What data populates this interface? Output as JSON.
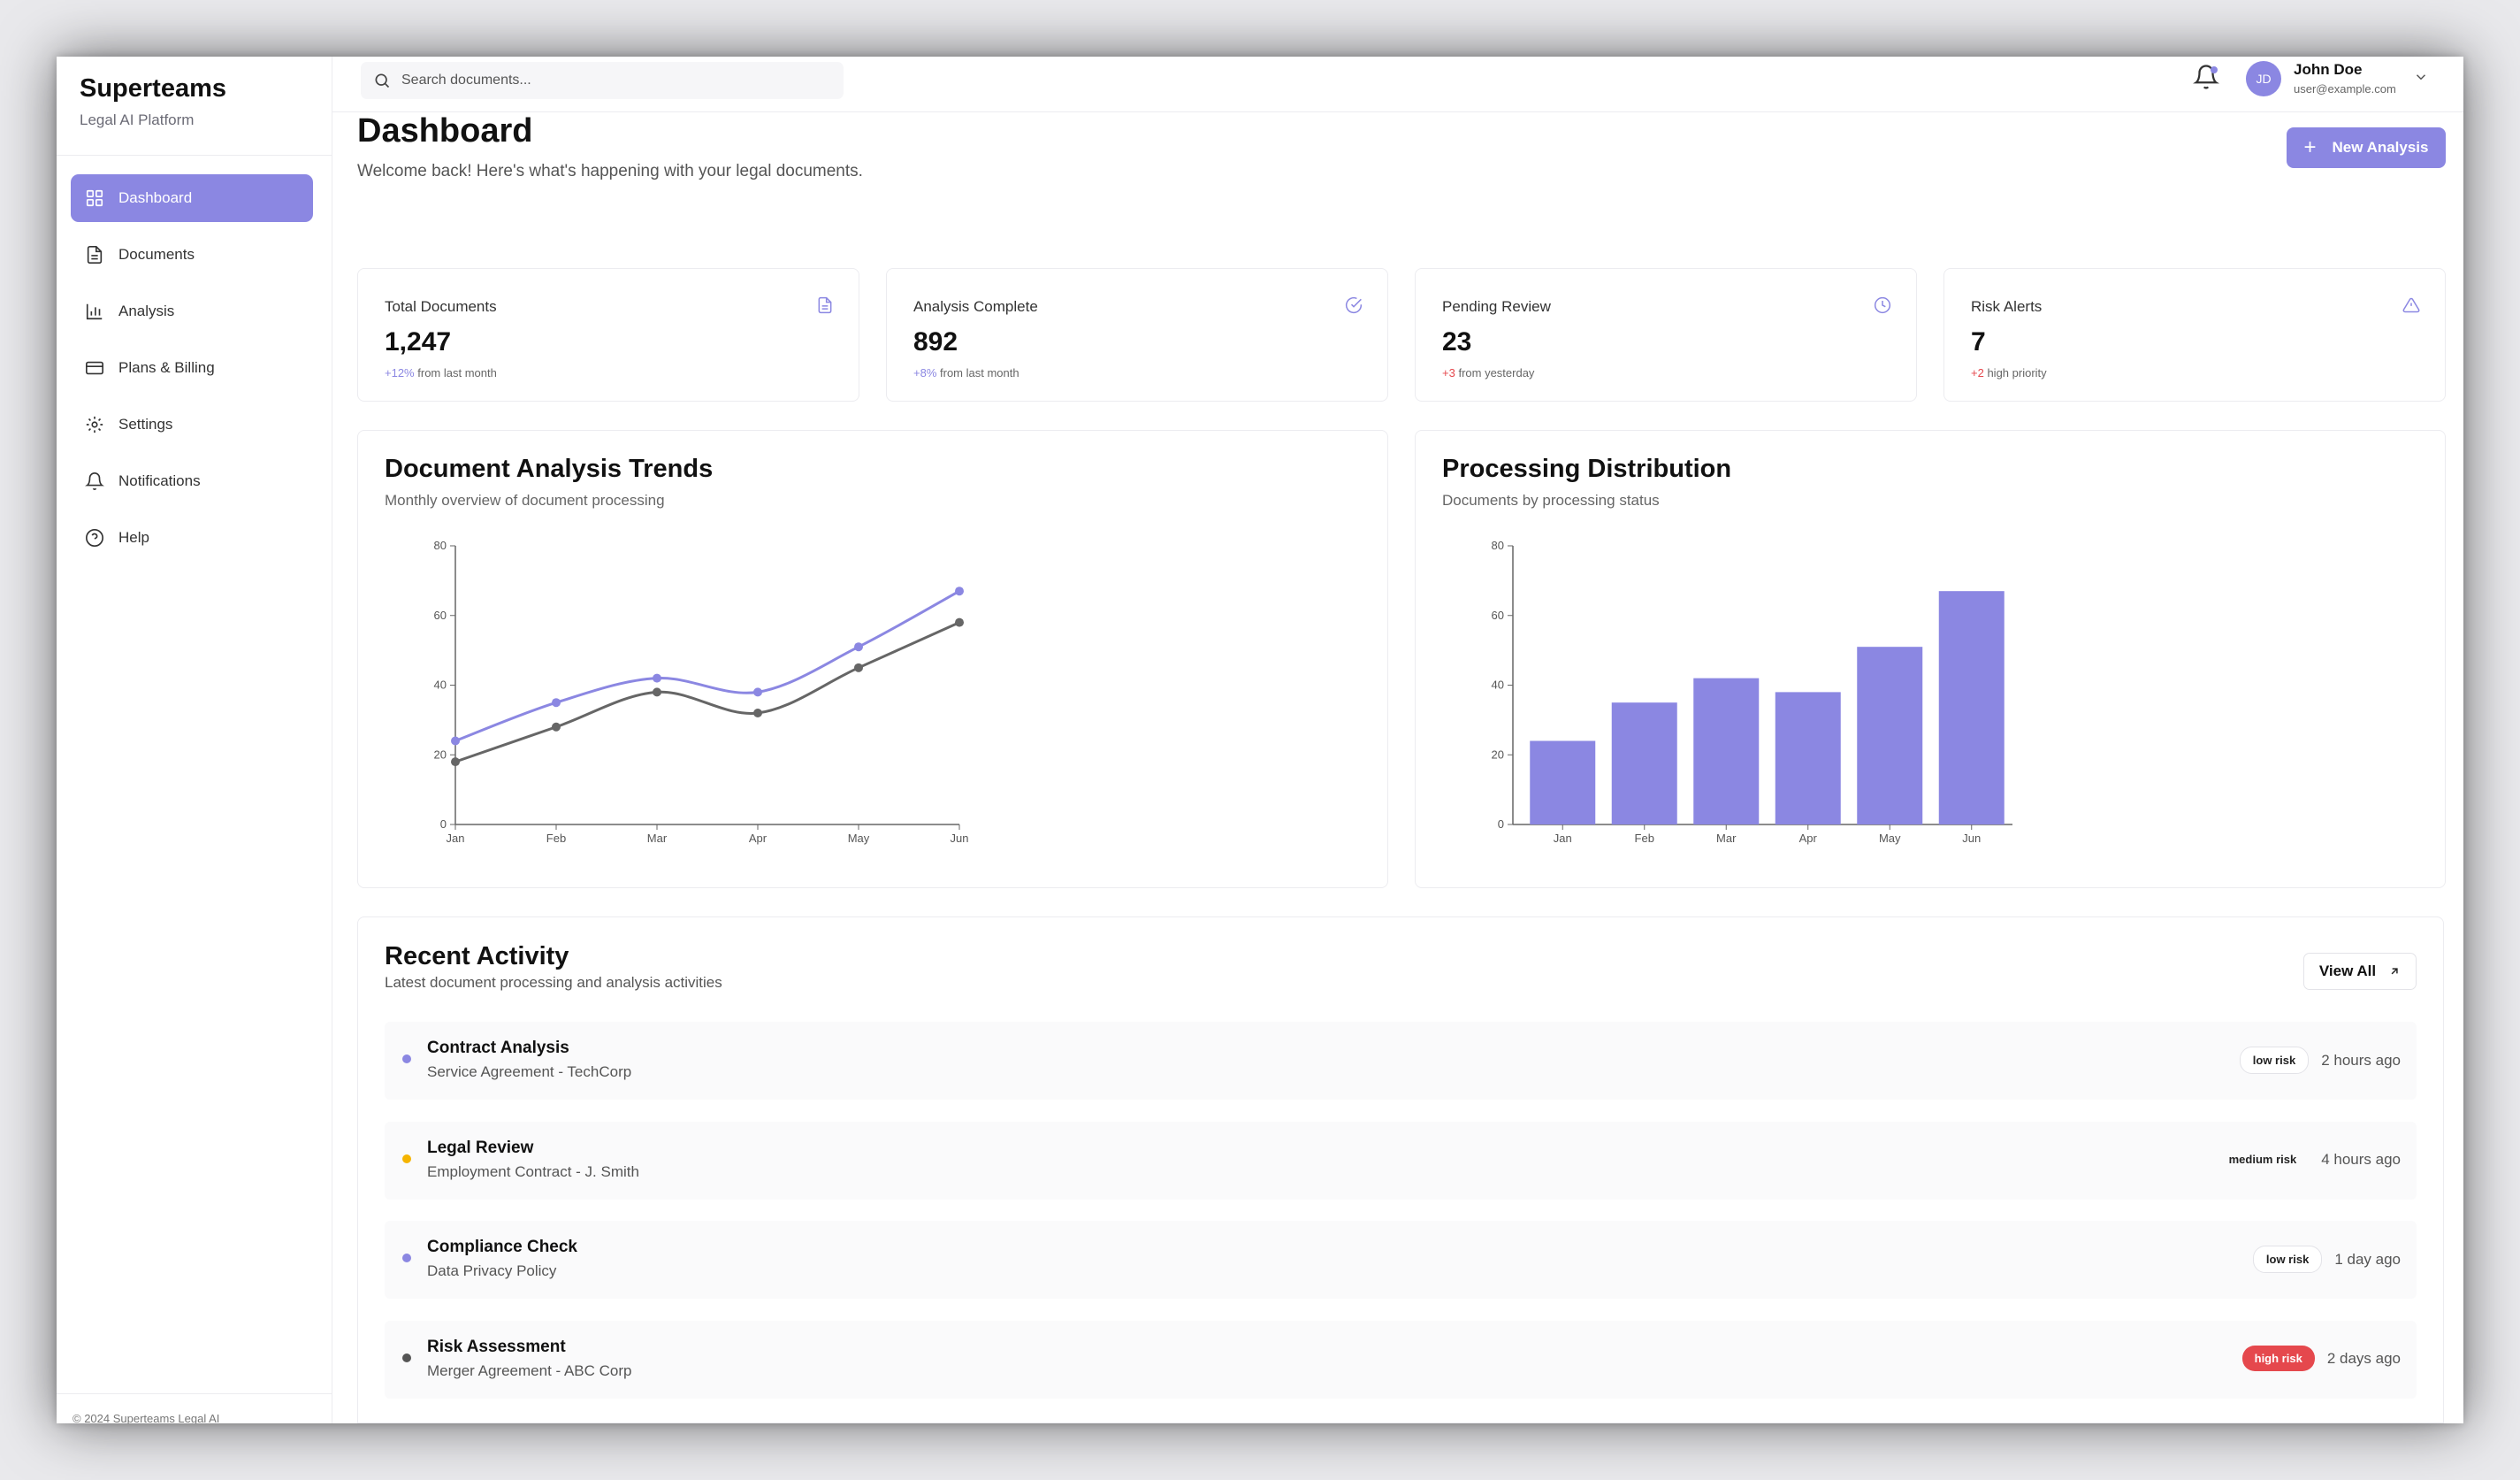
{
  "brand": {
    "title": "Superteams",
    "subtitle": "Legal AI Platform"
  },
  "nav": [
    {
      "label": "Dashboard",
      "icon": "grid-icon",
      "active": true
    },
    {
      "label": "Documents",
      "icon": "document-icon"
    },
    {
      "label": "Analysis",
      "icon": "bar-chart-icon"
    },
    {
      "label": "Plans & Billing",
      "icon": "credit-card-icon"
    },
    {
      "label": "Settings",
      "icon": "gear-icon"
    },
    {
      "label": "Notifications",
      "icon": "bell-icon"
    },
    {
      "label": "Help",
      "icon": "help-circle-icon"
    }
  ],
  "footer": "© 2024 Superteams Legal AI",
  "search": {
    "placeholder": "Search documents..."
  },
  "user": {
    "initials": "JD",
    "name": "John Doe",
    "email": "user@example.com"
  },
  "page": {
    "title": "Dashboard",
    "subtitle": "Welcome back! Here's what's happening with your legal documents.",
    "new_button": "New Analysis"
  },
  "stats": [
    {
      "label": "Total Documents",
      "value": "1,247",
      "change": "+12%",
      "change_text": "from last month",
      "change_type": "pos",
      "icon": "file-icon"
    },
    {
      "label": "Analysis Complete",
      "value": "892",
      "change": "+8%",
      "change_text": "from last month",
      "change_type": "pos",
      "icon": "check-circle-icon"
    },
    {
      "label": "Pending Review",
      "value": "23",
      "change": "+3",
      "change_text": "from yesterday",
      "change_type": "neg",
      "icon": "clock-icon"
    },
    {
      "label": "Risk Alerts",
      "value": "7",
      "change": "+2",
      "change_text": "high priority",
      "change_type": "neg",
      "icon": "alert-triangle-icon"
    }
  ],
  "charts": {
    "trends": {
      "title": "Document Analysis Trends",
      "subtitle": "Monthly overview of document processing"
    },
    "distribution": {
      "title": "Processing Distribution",
      "subtitle": "Documents by processing status"
    }
  },
  "chart_data": [
    {
      "type": "line",
      "title": "Document Analysis Trends",
      "categories": [
        "Jan",
        "Feb",
        "Mar",
        "Apr",
        "May",
        "Jun"
      ],
      "series": [
        {
          "color": "#8b87e2",
          "values": [
            24,
            35,
            42,
            38,
            51,
            67
          ]
        },
        {
          "color": "#666666",
          "values": [
            18,
            28,
            38,
            32,
            45,
            58
          ]
        }
      ],
      "ylim": [
        0,
        80
      ],
      "yticks": [
        0,
        20,
        40,
        60,
        80
      ],
      "grid": false
    },
    {
      "type": "bar",
      "title": "Processing Distribution",
      "categories": [
        "Jan",
        "Feb",
        "Mar",
        "Apr",
        "May",
        "Jun"
      ],
      "values": [
        24,
        35,
        42,
        38,
        51,
        67
      ],
      "color": "#8b87e2",
      "ylim": [
        0,
        80
      ],
      "yticks": [
        0,
        20,
        40,
        60,
        80
      ],
      "grid": false
    }
  ],
  "activity": {
    "title": "Recent Activity",
    "subtitle": "Latest document processing and analysis activities",
    "view_all": "View All",
    "items": [
      {
        "title": "Contract Analysis",
        "subtitle": "Service Agreement - TechCorp",
        "risk": "low risk",
        "risk_level": "low",
        "time": "2 hours ago",
        "dot": "#8b87e2"
      },
      {
        "title": "Legal Review",
        "subtitle": "Employment Contract - J. Smith",
        "risk": "medium risk",
        "risk_level": "medium",
        "time": "4 hours ago",
        "dot": "#f5b400"
      },
      {
        "title": "Compliance Check",
        "subtitle": "Data Privacy Policy",
        "risk": "low risk",
        "risk_level": "low",
        "time": "1 day ago",
        "dot": "#8b87e2"
      },
      {
        "title": "Risk Assessment",
        "subtitle": "Merger Agreement - ABC Corp",
        "risk": "high risk",
        "risk_level": "high",
        "time": "2 days ago",
        "dot": "#555555"
      }
    ]
  }
}
